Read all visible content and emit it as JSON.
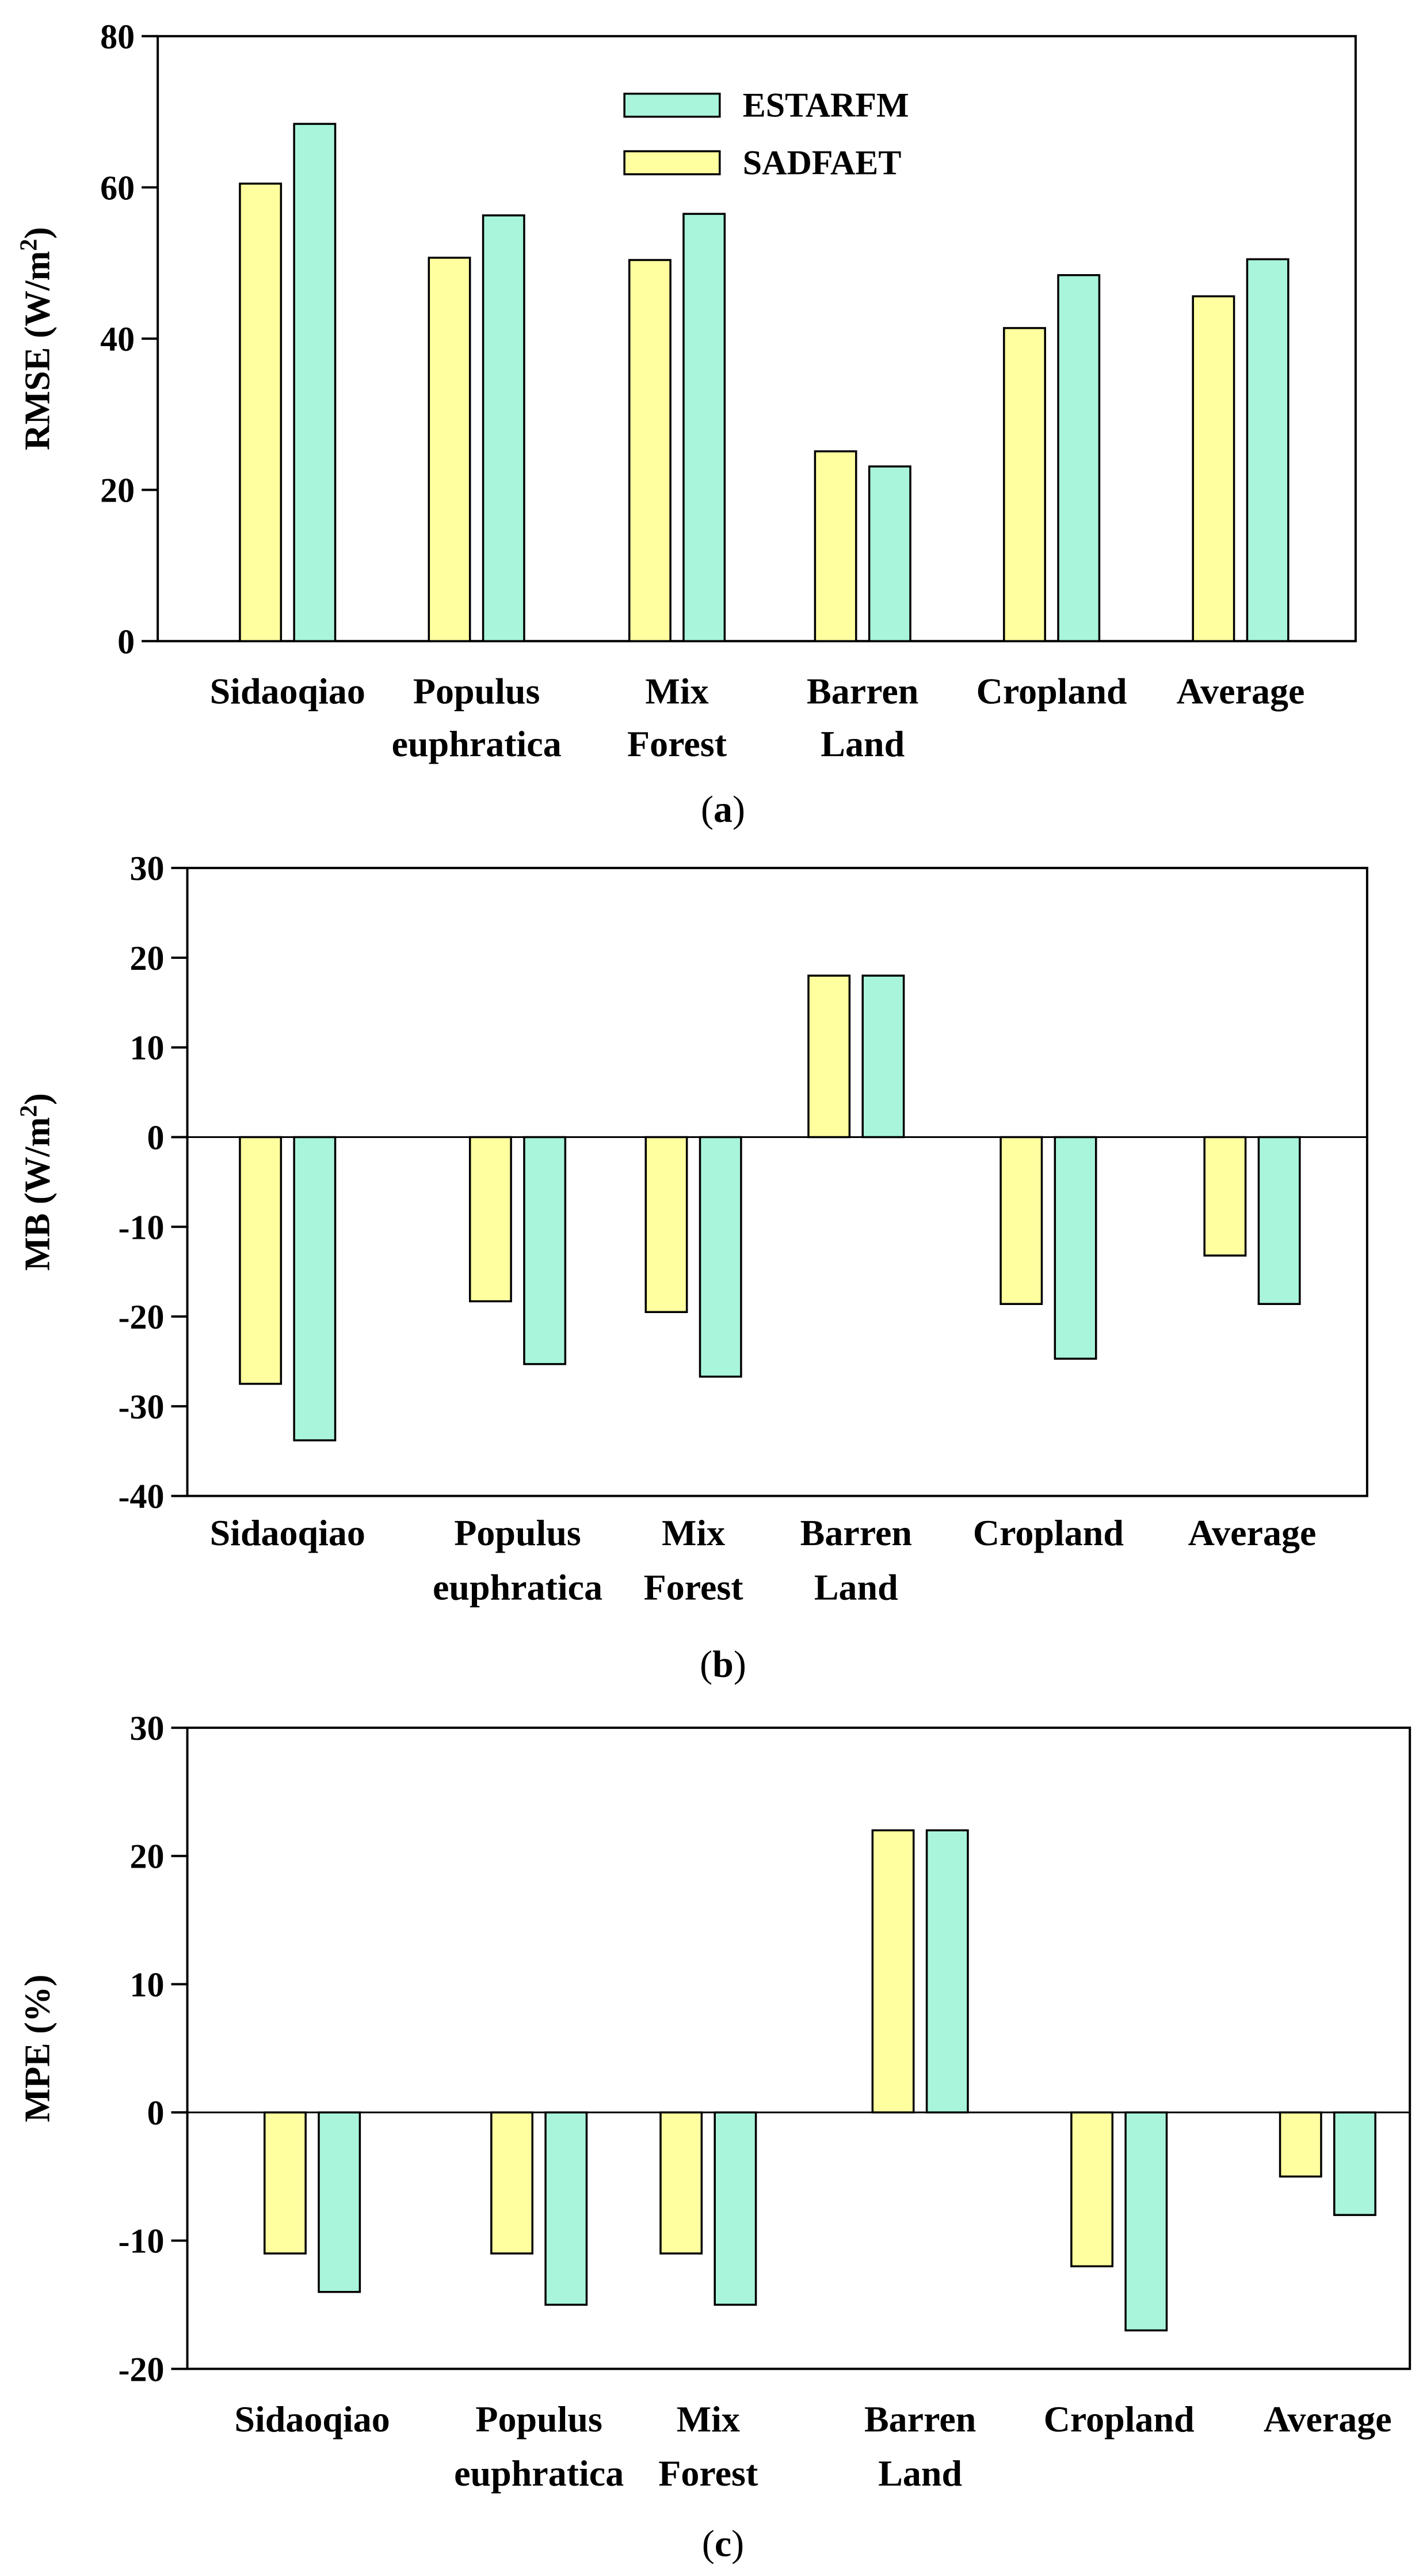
{
  "colors": {
    "SADFAET": "#ffffa0",
    "ESTARFM": "#a8f5dc",
    "stroke": "#000000"
  },
  "legend": [
    {
      "name": "ESTARFM",
      "color": "#a8f5dc"
    },
    {
      "name": "SADFAET",
      "color": "#ffffa0"
    }
  ],
  "chart_data": [
    {
      "type": "bar",
      "caption": "a",
      "ylabel": "RMSE (W/m",
      "ylabel_sup": "2",
      "ylabel_end": ")",
      "ylim": [
        0,
        80
      ],
      "yticks": [
        0,
        20,
        40,
        60,
        80
      ],
      "categories": [
        [
          "Sidaoqiao"
        ],
        [
          "Populus",
          "euphratica"
        ],
        [
          "Mix",
          "Forest"
        ],
        [
          "Barren",
          "Land"
        ],
        [
          "Cropland"
        ],
        [
          "Average"
        ]
      ],
      "series": [
        {
          "name": "SADFAET",
          "values": [
            60.5,
            50.7,
            50.4,
            25.1,
            41.4,
            45.6
          ]
        },
        {
          "name": "ESTARFM",
          "values": [
            68.4,
            56.3,
            56.5,
            23.1,
            48.4,
            50.5
          ]
        }
      ],
      "legend_position": "top-center",
      "grid": false
    },
    {
      "type": "bar",
      "caption": "b",
      "ylabel": "MB (W/m",
      "ylabel_sup": "2",
      "ylabel_end": ")",
      "ylim": [
        -40,
        30
      ],
      "yticks": [
        -40,
        -30,
        -20,
        -10,
        0,
        10,
        20,
        30
      ],
      "categories": [
        [
          "Sidaoqiao"
        ],
        [
          "Populus",
          "euphratica"
        ],
        [
          "Mix",
          "Forest"
        ],
        [
          "Barren",
          "Land"
        ],
        [
          "Cropland"
        ],
        [
          "Average"
        ]
      ],
      "series": [
        {
          "name": "SADFAET",
          "values": [
            -27.5,
            -18.3,
            -19.5,
            18.0,
            -18.6,
            -13.2
          ]
        },
        {
          "name": "ESTARFM",
          "values": [
            -33.8,
            -25.3,
            -26.7,
            18.0,
            -24.7,
            -18.6
          ]
        }
      ],
      "grid": false
    },
    {
      "type": "bar",
      "caption": "c",
      "ylabel": "MPE (%)",
      "ylabel_sup": "",
      "ylabel_end": "",
      "ylim": [
        -20,
        30
      ],
      "yticks": [
        -20,
        -10,
        0,
        10,
        20,
        30
      ],
      "categories": [
        [
          "Sidaoqiao"
        ],
        [
          "Populus",
          "euphratica"
        ],
        [
          "Mix",
          "Forest"
        ],
        [
          "Barren",
          "Land"
        ],
        [
          "Cropland"
        ],
        [
          "Average"
        ]
      ],
      "series": [
        {
          "name": "SADFAET",
          "values": [
            -11,
            -11,
            -11,
            22,
            -12,
            -5
          ]
        },
        {
          "name": "ESTARFM",
          "values": [
            -14,
            -15,
            -15,
            22,
            -17,
            -8
          ]
        }
      ],
      "grid": false
    }
  ]
}
